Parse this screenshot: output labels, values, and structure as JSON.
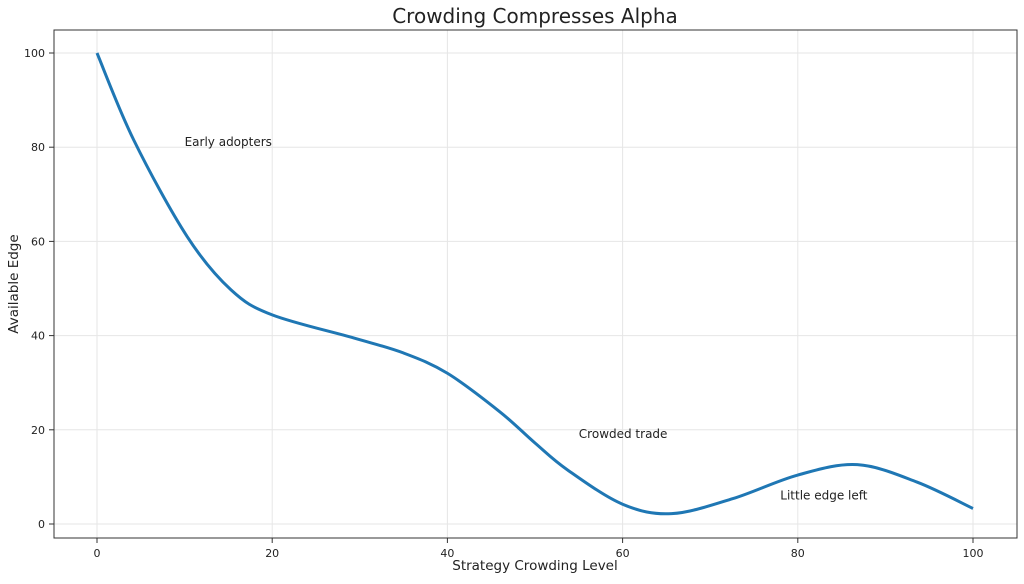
{
  "chart_data": {
    "type": "line",
    "title": "Crowding Compresses Alpha",
    "xlabel": "Strategy Crowding Level",
    "ylabel": "Available Edge",
    "xlim": [
      -5,
      105
    ],
    "ylim": [
      -3,
      105
    ],
    "xticks": [
      "0",
      "20",
      "40",
      "60",
      "80",
      "100"
    ],
    "yticks": [
      "0",
      "20",
      "40",
      "60",
      "80",
      "100"
    ],
    "grid": true,
    "color": "#1f77b4",
    "series": [
      {
        "x": [
          0,
          4.2,
          10.3,
          15.3,
          20,
          29.3,
          35,
          40,
          46,
          50,
          53.7,
          60,
          65.6,
          72.6,
          80,
          86.8,
          93.6,
          100
        ],
        "y": [
          100,
          81.5,
          61,
          49.7,
          44.4,
          39.5,
          36.3,
          32,
          23.8,
          17.2,
          11.5,
          4.2,
          2.2,
          5.4,
          10.4,
          12.6,
          8.9,
          3.3
        ]
      }
    ],
    "annotations": [
      {
        "text": "Early adopters",
        "x": 10,
        "y": 80
      },
      {
        "text": "Crowded trade",
        "x": 55,
        "y": 18
      },
      {
        "text": "Little edge left",
        "x": 78,
        "y": 5
      }
    ]
  }
}
